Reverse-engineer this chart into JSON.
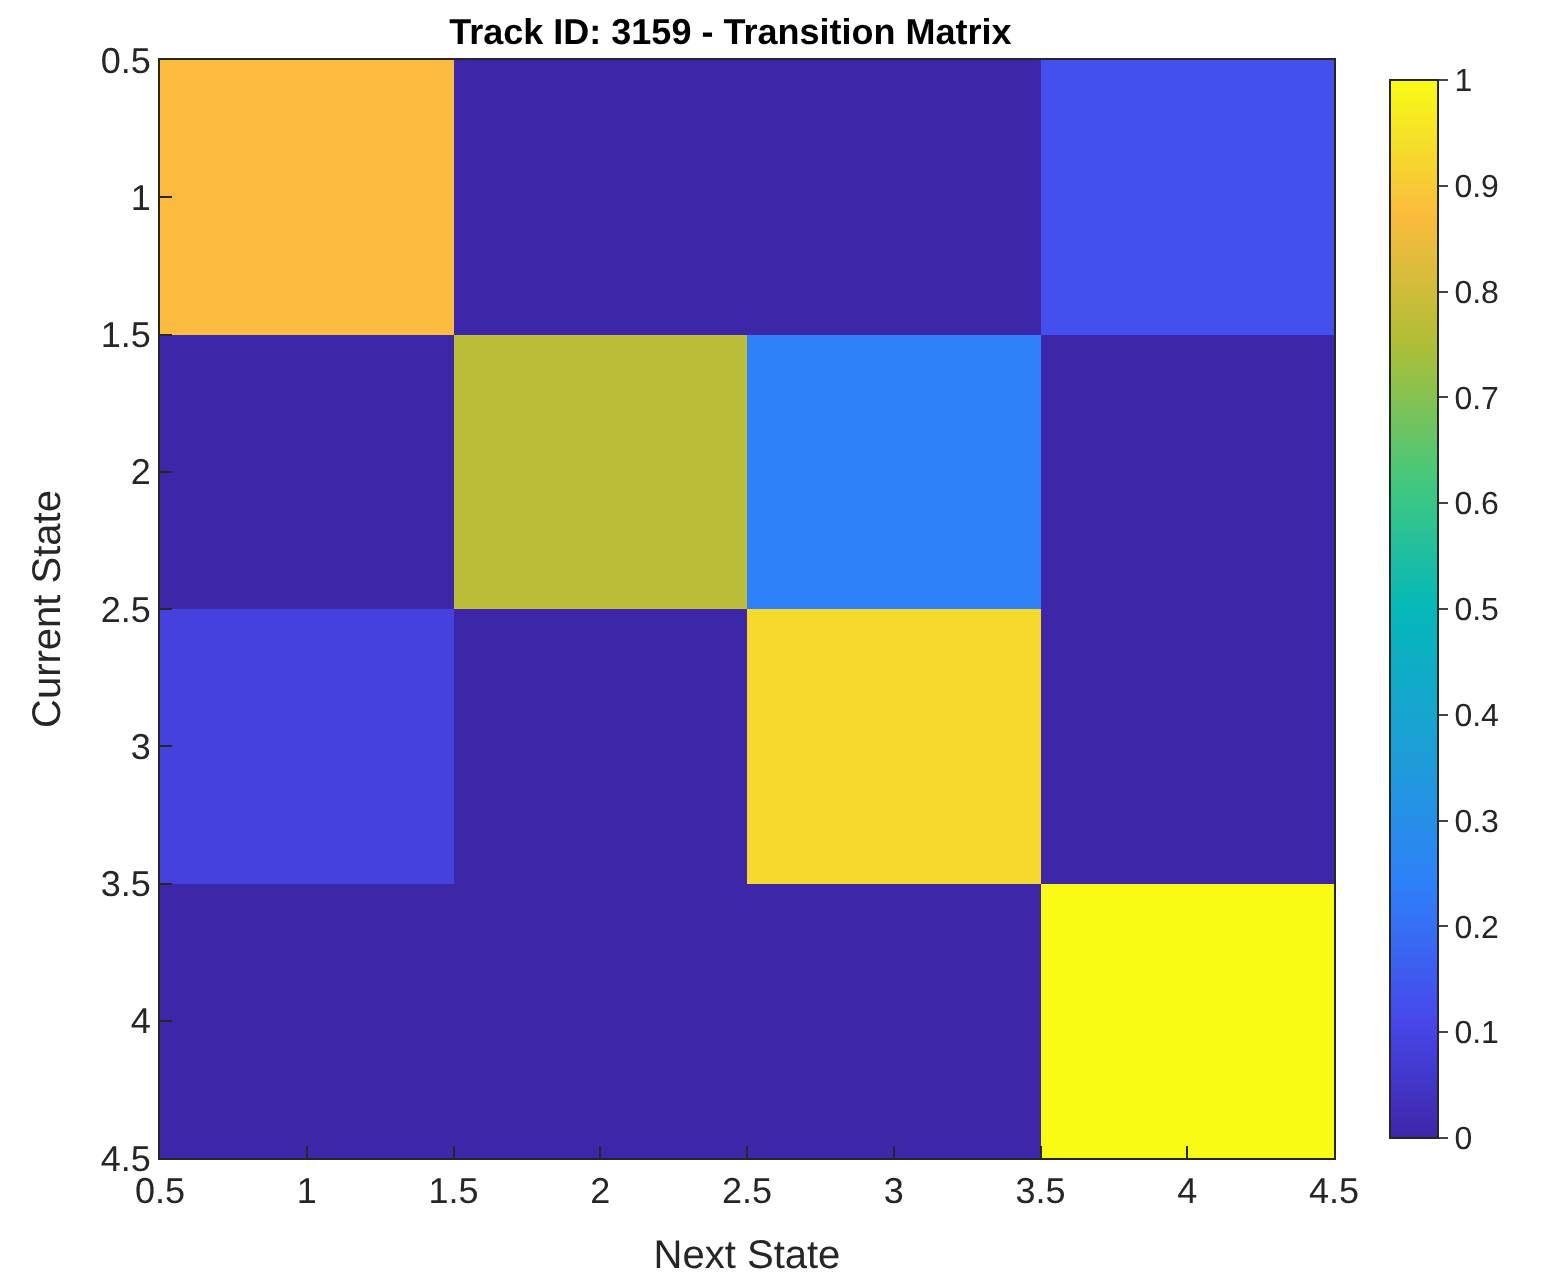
{
  "chart_data": {
    "type": "heatmap",
    "title": "Track ID: 3159 - Transition Matrix",
    "xlabel": "Next State",
    "ylabel": "Current State",
    "x": [
      1,
      2,
      3,
      4
    ],
    "cells": [
      [
        0.87,
        0,
        0,
        0.13
      ],
      [
        0,
        0.77,
        0.24,
        0
      ],
      [
        0.09,
        0,
        0.93,
        0
      ],
      [
        0,
        0,
        0,
        1
      ]
    ],
    "xlim": [
      0.5,
      4.5
    ],
    "xticks": [
      0.5,
      1,
      1.5,
      2,
      2.5,
      3,
      3.5,
      4,
      4.5
    ],
    "ylim": [
      4.5,
      0.5
    ],
    "yticks": [
      0.5,
      1,
      1.5,
      2,
      2.5,
      3,
      3.5,
      4,
      4.5
    ],
    "clim": [
      0,
      1
    ],
    "cticks": [
      0,
      0.1,
      0.2,
      0.3,
      0.4,
      0.5,
      0.6,
      0.7,
      0.8,
      0.9,
      1
    ]
  }
}
